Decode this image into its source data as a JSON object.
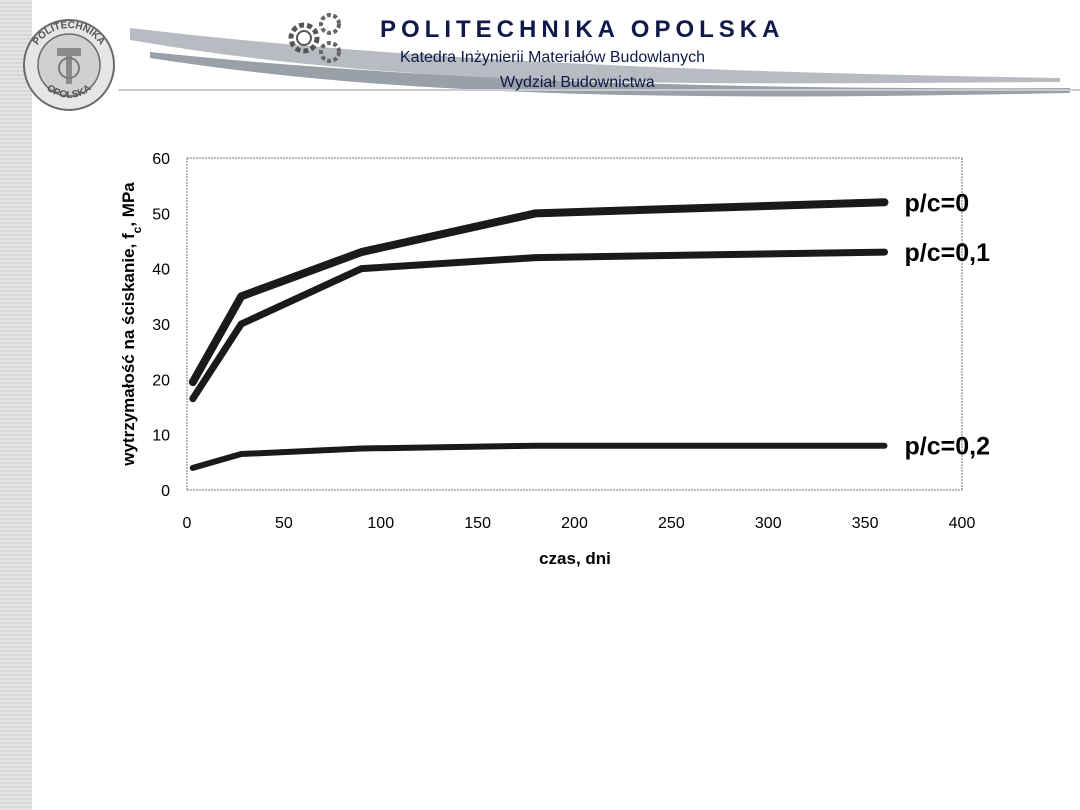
{
  "header": {
    "university": "POLITECHNIKA OPOLSKA",
    "department": "Katedra Inżynierii Materiałów Budowlanych",
    "faculty": "Wydział Budownictwa",
    "seal_text_top": "POLITECHNIKA",
    "seal_text_bottom": "OPOLSKA",
    "colors": {
      "text": "#0f1a4a",
      "swoosh": "#9aa0a8"
    }
  },
  "chart_data": {
    "type": "line",
    "xlabel": "czas, dni",
    "ylabel": "wytrzymałość na ściskanie, fc, MPa",
    "xlim": [
      0,
      400
    ],
    "ylim": [
      0,
      60
    ],
    "xticks": [
      0,
      50,
      100,
      150,
      200,
      250,
      300,
      350,
      400
    ],
    "yticks": [
      0,
      10,
      20,
      30,
      40,
      50,
      60
    ],
    "grid": false,
    "series": [
      {
        "name": "p/c=0",
        "x": [
          3,
          28,
          90,
          180,
          360
        ],
        "y": [
          19.5,
          35,
          43,
          50,
          52
        ]
      },
      {
        "name": "p/c=0,1",
        "x": [
          3,
          28,
          90,
          180,
          360
        ],
        "y": [
          16.5,
          30,
          40,
          42,
          43
        ]
      },
      {
        "name": "p/c=0,2",
        "x": [
          3,
          28,
          90,
          180,
          360
        ],
        "y": [
          4,
          6.5,
          7.5,
          8,
          8
        ]
      }
    ]
  }
}
